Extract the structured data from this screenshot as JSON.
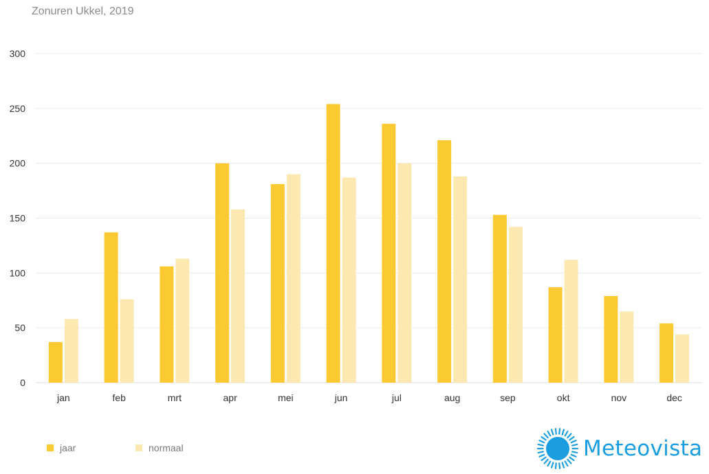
{
  "colors": {
    "jaar": "#fbca33",
    "normaal": "#fce9b2",
    "grid": "#ececec",
    "brand": "#1a9ee0"
  },
  "brand": {
    "name": "Meteovista",
    "icon": "sun-logo-icon"
  },
  "chart_data": {
    "type": "bar",
    "title": "Zonuren Ukkel, 2019",
    "xlabel": "",
    "ylabel": "",
    "ylim": [
      0,
      300
    ],
    "yticks": [
      0,
      50,
      100,
      150,
      200,
      250,
      300
    ],
    "grid": true,
    "legend_position": "bottom-left",
    "categories": [
      "jan",
      "feb",
      "mrt",
      "apr",
      "mei",
      "jun",
      "jul",
      "aug",
      "sep",
      "okt",
      "nov",
      "dec"
    ],
    "series": [
      {
        "name": "jaar",
        "values": [
          37,
          137,
          106,
          200,
          181,
          254,
          236,
          221,
          153,
          87,
          79,
          54
        ]
      },
      {
        "name": "normaal",
        "values": [
          58,
          76,
          113,
          158,
          190,
          187,
          200,
          188,
          142,
          112,
          65,
          44
        ]
      }
    ]
  }
}
